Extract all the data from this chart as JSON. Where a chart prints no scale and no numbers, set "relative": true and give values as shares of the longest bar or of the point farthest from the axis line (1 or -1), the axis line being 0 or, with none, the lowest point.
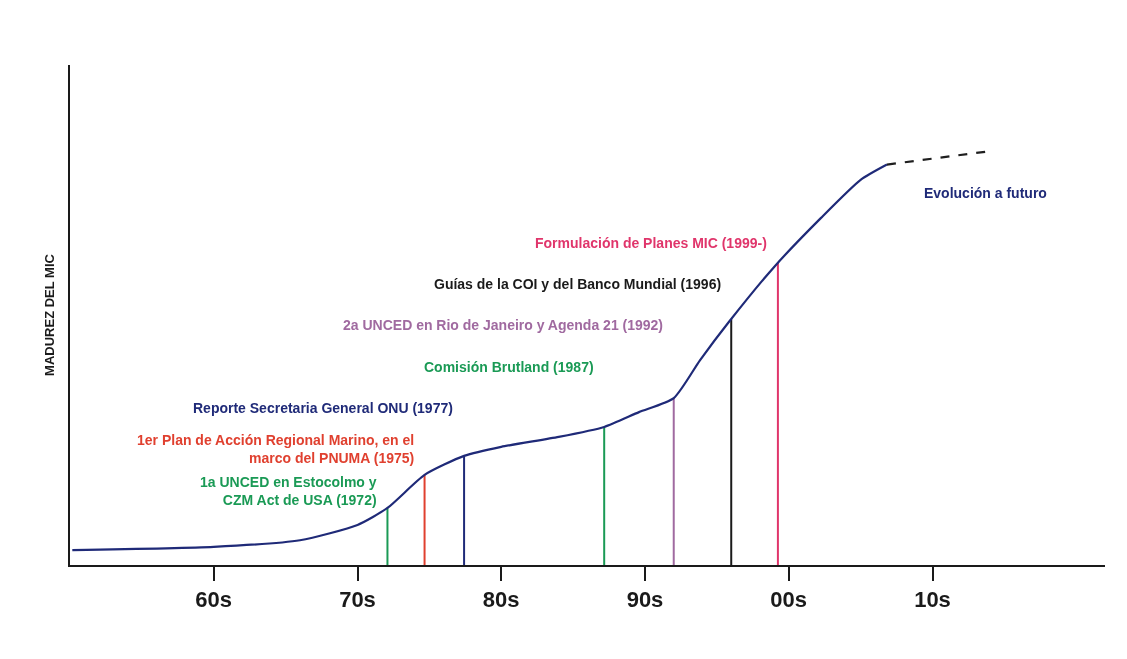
{
  "chart_data": {
    "type": "line",
    "relative": true,
    "ylabel": "MADUREZ DEL MIC",
    "xlim": [
      "1950",
      "2022"
    ],
    "xticks": [
      {
        "value": "1960",
        "label": "60s"
      },
      {
        "value": "1970",
        "label": "70s"
      },
      {
        "value": "1980",
        "label": "80s"
      },
      {
        "value": "1990",
        "label": "90s"
      },
      {
        "value": "2000",
        "label": "00s"
      },
      {
        "value": "2010",
        "label": "10s"
      }
    ],
    "series": [
      {
        "color": "#1f2a78",
        "line_style": "solid",
        "x": [
          "1950-03",
          "1960-01",
          "1966-01",
          "1970-01",
          "1972-02",
          "1974-09",
          "1977-06",
          "1980-01",
          "1984-01",
          "1987-03",
          "1989-08",
          "1992-01",
          "1993-11",
          "1995-11",
          "1999-01",
          "2002-04",
          "2005-01",
          "2006-11"
        ],
        "values": [
          0.036,
          0.044,
          0.06,
          0.097,
          0.138,
          0.218,
          0.264,
          0.286,
          0.31,
          0.334,
          0.37,
          0.404,
          0.496,
          0.588,
          0.722,
          0.84,
          0.932,
          0.969
        ]
      },
      {
        "color": "#1f1f1f",
        "line_style": "dashed",
        "x": [
          "2006-11",
          "2013-09"
        ],
        "values": [
          0.969,
          1.0
        ]
      }
    ],
    "ref_lines": [
      {
        "axis": "x",
        "value": "1972-02",
        "label": "1a UNCED en Estocolmo y\nCZM Act de USA (1972)",
        "color": "#1a9a55"
      },
      {
        "axis": "x",
        "value": "1974-09",
        "label": "1er Plan de Acción Regional Marino, en el\nmarco del PNUMA (1975)",
        "color": "#e0402f"
      },
      {
        "axis": "x",
        "value": "1977-06",
        "label": "Reporte Secretaria General ONU (1977)",
        "color": "#1f2a78"
      },
      {
        "axis": "x",
        "value": "1987-03",
        "label": "Comisión Brutland (1987)",
        "color": "#1a9a55"
      },
      {
        "axis": "x",
        "value": "1992-01",
        "label": "2a UNCED en Rio de Janeiro y Agenda 21 (1992)",
        "color": "#a06aa0"
      },
      {
        "axis": "x",
        "value": "1996-01",
        "label": "Guías de la COI y del Banco Mundial (1996)",
        "color": "#1a1a1a"
      },
      {
        "axis": "x",
        "value": "1999-04",
        "label": "Formulación de Planes MIC (1999-)",
        "color": "#e0356b"
      }
    ],
    "annotations": [
      "Evolución a futuro"
    ],
    "grid": false
  }
}
